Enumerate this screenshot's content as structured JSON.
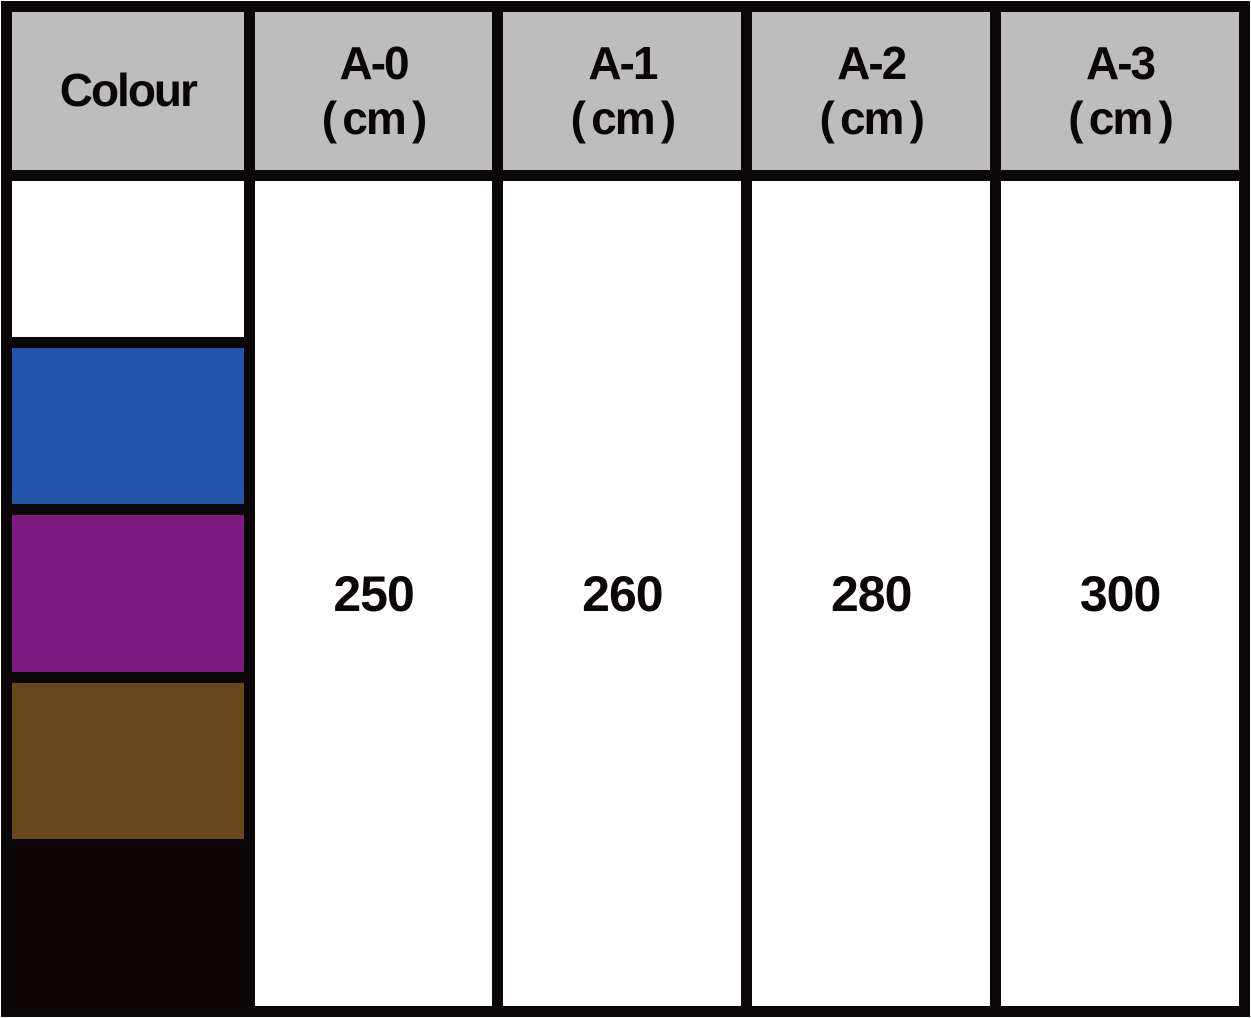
{
  "table": {
    "header": {
      "colour_label": "Colour",
      "columns": [
        {
          "label": "A-0",
          "unit": "( cm )"
        },
        {
          "label": "A-1",
          "unit": "( cm )"
        },
        {
          "label": "A-2",
          "unit": "( cm )"
        },
        {
          "label": "A-3",
          "unit": "( cm )"
        }
      ]
    },
    "swatches": [
      {
        "name": "white",
        "hex": "#ffffff"
      },
      {
        "name": "blue",
        "hex": "#2356a8"
      },
      {
        "name": "purple",
        "hex": "#7d1a82"
      },
      {
        "name": "brown",
        "hex": "#6a481e"
      },
      {
        "name": "black",
        "hex": "#0a0404"
      }
    ],
    "values": [
      "250",
      "260",
      "280",
      "300"
    ]
  },
  "colors": {
    "header_background": "#bdbdbd",
    "grid_border": "#0a0506",
    "cell_background": "#ffffff",
    "text": "#0a0606"
  },
  "chart_data": {
    "type": "table",
    "title": "",
    "columns": [
      "Colour",
      "A-0 (cm)",
      "A-1 (cm)",
      "A-2 (cm)",
      "A-3 (cm)"
    ],
    "colour_swatches": [
      {
        "name": "white",
        "hex": "#ffffff"
      },
      {
        "name": "blue",
        "hex": "#2356a8"
      },
      {
        "name": "purple",
        "hex": "#7d1a82"
      },
      {
        "name": "brown",
        "hex": "#6a481e"
      },
      {
        "name": "black",
        "hex": "#0a0404"
      }
    ],
    "sizes_cm": {
      "A-0": 250,
      "A-1": 260,
      "A-2": 280,
      "A-3": 300
    },
    "layout_notes": "size value cells are merged vertically across all five colour rows"
  }
}
